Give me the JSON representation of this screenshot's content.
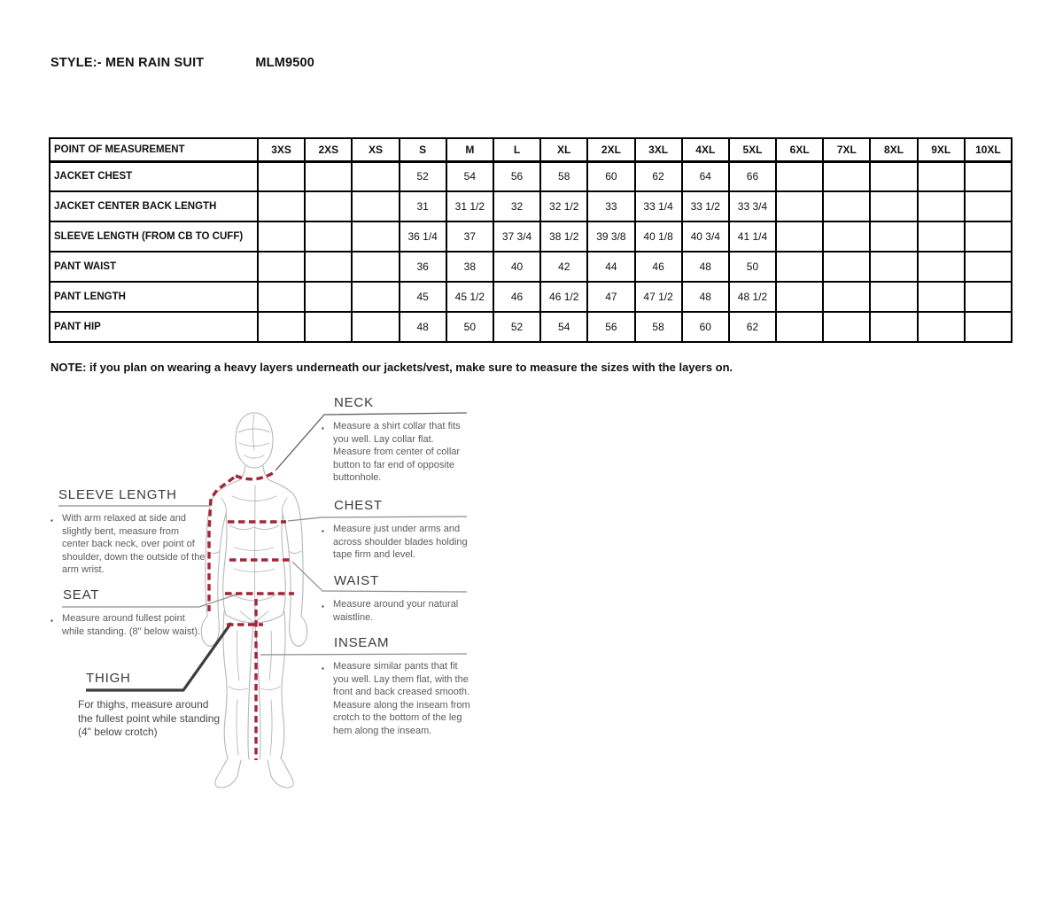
{
  "title": {
    "style_label": "STYLE:- MEN RAIN SUIT",
    "style_code": "MLM9500"
  },
  "size_chart": {
    "header": [
      "POINT OF MEASUREMENT",
      "3XS",
      "2XS",
      "XS",
      "S",
      "M",
      "L",
      "XL",
      "2XL",
      "3XL",
      "4XL",
      "5XL",
      "6XL",
      "7XL",
      "8XL",
      "9XL",
      "10XL"
    ],
    "rows": [
      {
        "label": "JACKET CHEST",
        "values": [
          "",
          "",
          "",
          "52",
          "54",
          "56",
          "58",
          "60",
          "62",
          "64",
          "66",
          "",
          "",
          "",
          "",
          ""
        ]
      },
      {
        "label": "JACKET CENTER BACK LENGTH",
        "values": [
          "",
          "",
          "",
          "31",
          "31 1/2",
          "32",
          "32 1/2",
          "33",
          "33 1/4",
          "33 1/2",
          "33 3/4",
          "",
          "",
          "",
          "",
          ""
        ]
      },
      {
        "label": "SLEEVE LENGTH (FROM CB TO CUFF)",
        "values": [
          "",
          "",
          "",
          "36 1/4",
          "37",
          "37 3/4",
          "38 1/2",
          "39 3/8",
          "40 1/8",
          "40 3/4",
          "41 1/4",
          "",
          "",
          "",
          "",
          ""
        ]
      },
      {
        "label": "PANT WAIST",
        "values": [
          "",
          "",
          "",
          "36",
          "38",
          "40",
          "42",
          "44",
          "46",
          "48",
          "50",
          "",
          "",
          "",
          "",
          ""
        ]
      },
      {
        "label": "PANT LENGTH",
        "values": [
          "",
          "",
          "",
          "45",
          "45 1/2",
          "46",
          "46 1/2",
          "47",
          "47 1/2",
          "48",
          "48 1/2",
          "",
          "",
          "",
          "",
          ""
        ]
      },
      {
        "label": "PANT HIP",
        "values": [
          "",
          "",
          "",
          "48",
          "50",
          "52",
          "54",
          "56",
          "58",
          "60",
          "62",
          "",
          "",
          "",
          "",
          ""
        ]
      }
    ]
  },
  "note": "NOTE: if you plan on wearing a heavy layers underneath our jackets/vest, make sure to measure the sizes with the layers on.",
  "guide": {
    "sections": {
      "neck": {
        "heading": "NECK",
        "bullet": "▪",
        "text": "Measure a shirt collar that fits you well. Lay collar flat. Measure from center of collar button to far end of opposite buttonhole."
      },
      "chest": {
        "heading": "CHEST",
        "bullet": "▪",
        "text": "Measure just under arms and across shoulder blades holding tape firm and level."
      },
      "waist": {
        "heading": "WAIST",
        "bullet": "▪",
        "text": "Measure around your natural waistline."
      },
      "inseam": {
        "heading": "INSEAM",
        "bullet": "▪",
        "text": "Measure similar pants that fit you well. Lay them flat, with the front and back creased smooth. Measure along the inseam from crotch to the bottom of the leg hem along the inseam."
      },
      "sleeve_length": {
        "heading": "SLEEVE LENGTH",
        "bullet": "▪",
        "text": "With arm relaxed at side and slightly bent, measure from center back neck, over point of shoulder, down the outside of the arm wrist."
      },
      "seat": {
        "heading": "SEAT",
        "bullet": "▪",
        "text": "Measure around fullest point while standing. (8\" below waist)."
      },
      "thigh": {
        "heading": "THIGH",
        "bullet": "",
        "text": "For thighs, measure around the fullest point while standing (4\" below crotch)"
      }
    }
  },
  "colors": {
    "measure_dash": "#a32638",
    "connector": "#8c8c8c",
    "neck_connector": "#5f5f5f",
    "thigh_line": "#3d3d3d",
    "figure_outline": "#b7b7b7",
    "table_border": "#000000"
  }
}
